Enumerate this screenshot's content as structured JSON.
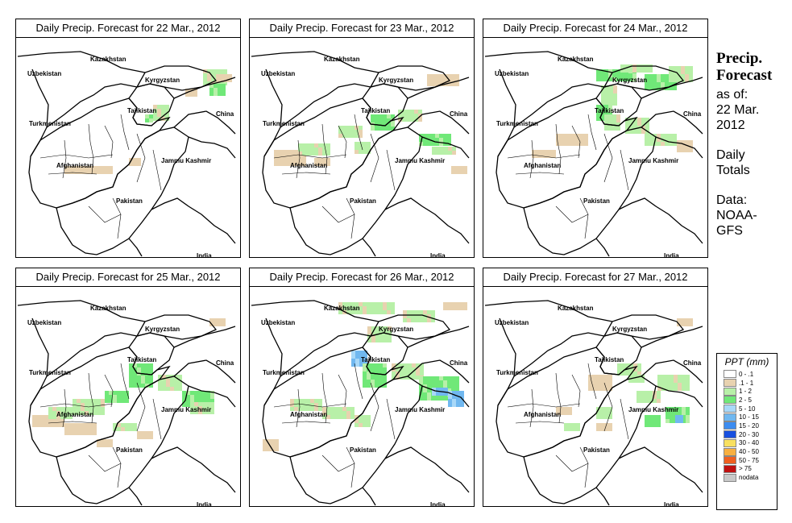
{
  "panels": [
    {
      "title": "Daily Precip. Forecast for  22 Mar., 2012"
    },
    {
      "title": "Daily Precip. Forecast for  23 Mar., 2012"
    },
    {
      "title": "Daily Precip. Forecast for  24 Mar., 2012"
    },
    {
      "title": "Daily Precip. Forecast for  25 Mar., 2012"
    },
    {
      "title": "Daily Precip. Forecast for  26 Mar., 2012"
    },
    {
      "title": "Daily Precip. Forecast for  27 Mar., 2012"
    }
  ],
  "map_labels": {
    "uzbekistan": "Uzbekistan",
    "kazakhstan": "Kazakhstan",
    "kyrgyzstan": "Kyrgyzstan",
    "tajikistan": "Tajikistan",
    "turkmenistan": "Turkmenistan",
    "china": "China",
    "afghanistan": "Afghanistan",
    "jammu_kashmir": "Jammu Kashmir",
    "pakistan": "Pakistan",
    "india": "India"
  },
  "side": {
    "title_line1": "Precip.",
    "title_line2": "Forecast",
    "asof": "as of:",
    "date_line1": "22 Mar.",
    "date_line2": "2012",
    "daily": "Daily",
    "totals": "Totals",
    "data_label": "Data:",
    "source_line1": "NOAA-",
    "source_line2": "GFS"
  },
  "legend": {
    "title": "PPT (mm)",
    "items": [
      {
        "label": "0 - .1",
        "color": "#ffffff"
      },
      {
        "label": ".1 - 1",
        "color": "#e8d2b0"
      },
      {
        "label": "1 - 2",
        "color": "#b8f0a8"
      },
      {
        "label": "2 - 5",
        "color": "#70e878"
      },
      {
        "label": "5 - 10",
        "color": "#a8d8f8"
      },
      {
        "label": "10 - 15",
        "color": "#70b8f0"
      },
      {
        "label": "15 - 20",
        "color": "#3c8cf0"
      },
      {
        "label": "20 - 30",
        "color": "#1850e0"
      },
      {
        "label": "30 - 40",
        "color": "#f8e060"
      },
      {
        "label": "40 - 50",
        "color": "#f8b040"
      },
      {
        "label": "50 - 75",
        "color": "#f06020"
      },
      {
        "label": "> 75",
        "color": "#c01010"
      },
      {
        "label": "nodata",
        "color": "#c8c8c8"
      }
    ]
  }
}
